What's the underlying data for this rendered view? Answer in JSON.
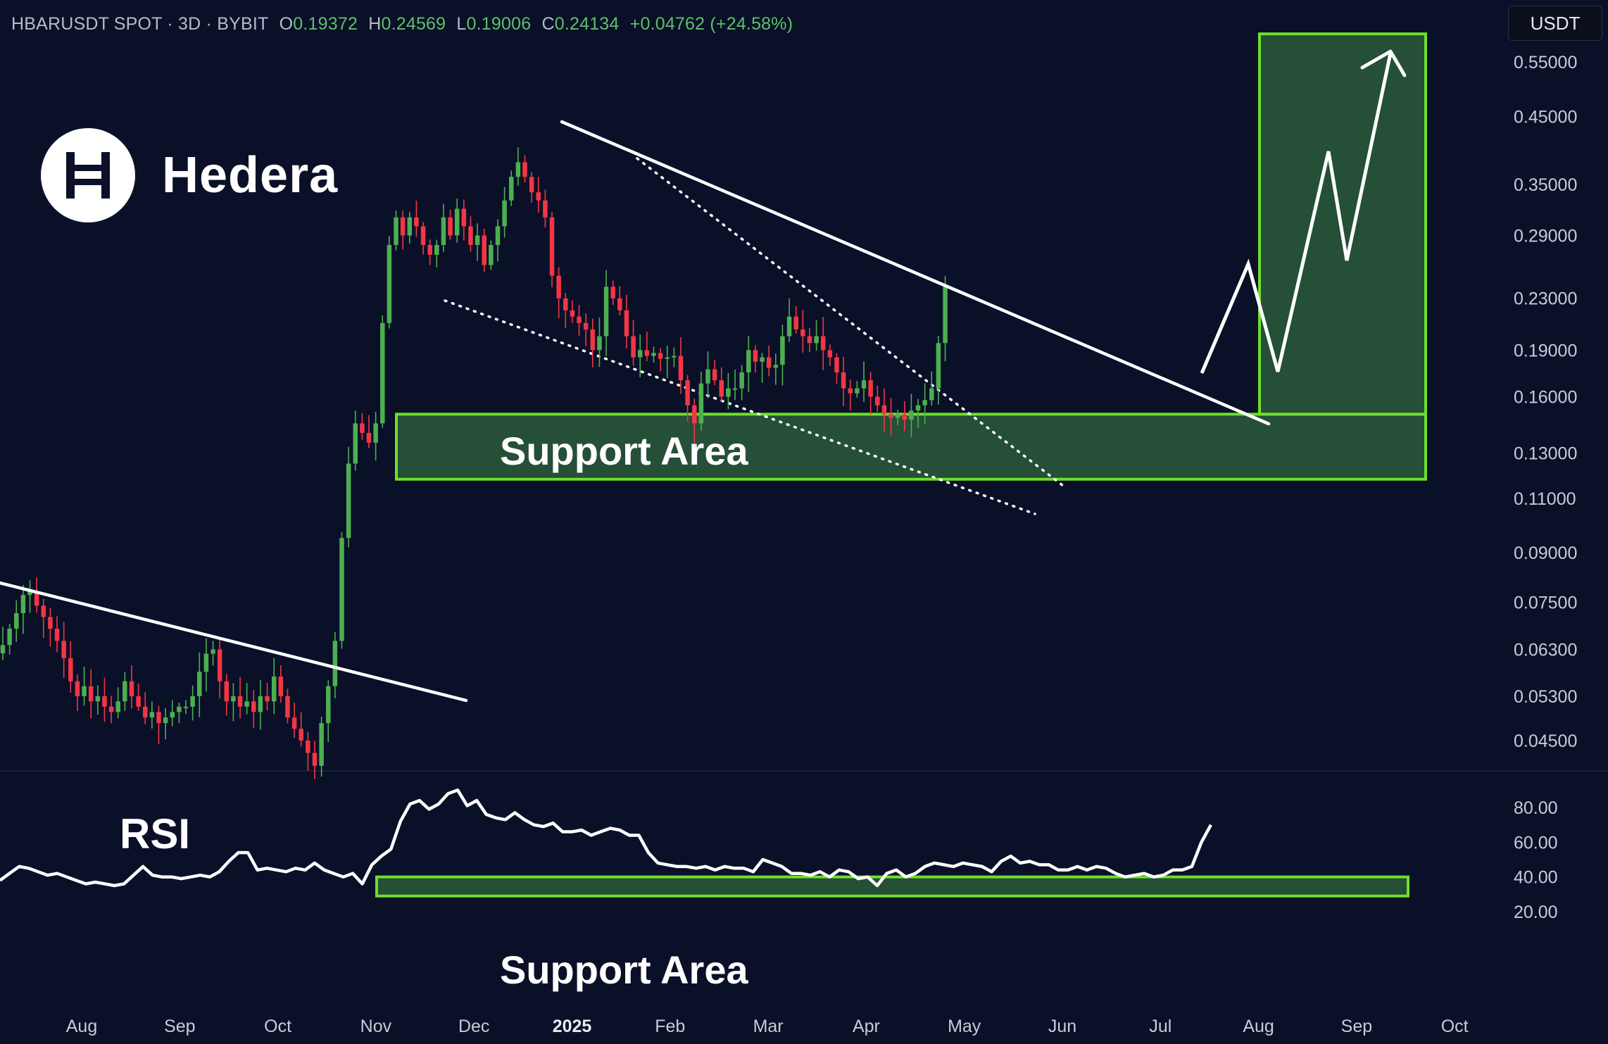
{
  "header": {
    "symbol": "HBARUSDT SPOT · 3D · BYBIT",
    "open_label": "O",
    "open": "0.19372",
    "high_label": "H",
    "high": "0.24569",
    "low_label": "L",
    "low": "0.19006",
    "close_label": "C",
    "close": "0.24134",
    "change": "+0.04762 (+24.58%)"
  },
  "currency_button": "USDT",
  "brand": {
    "name": "Hedera",
    "logo_icon": "hedera-logo-icon"
  },
  "annotations": {
    "support_price": "Support Area",
    "support_rsi": "Support Area",
    "rsi_title": "RSI"
  },
  "colors": {
    "background": "#0a1028",
    "up_candle": "#4caf50",
    "down_candle": "#f23645",
    "zone_fill": "#2a5a3a",
    "zone_border": "#6ee02a",
    "lines": "#ffffff"
  },
  "chart_data": {
    "type": "candlestick",
    "scale": "log",
    "interval": "3D",
    "price_axis": {
      "ticks": [
        "0.55000",
        "0.45000",
        "0.35000",
        "0.29000",
        "0.23000",
        "0.19000",
        "0.16000",
        "0.13000",
        "0.11000",
        "0.09000",
        "0.07500",
        "0.06300",
        "0.05300",
        "0.04500"
      ],
      "ylim": [
        0.038,
        0.62
      ]
    },
    "rsi_axis": {
      "ticks": [
        "80.00",
        "60.00",
        "40.00",
        "20.00"
      ],
      "ylim": [
        8,
        96
      ]
    },
    "time_axis": {
      "labels": [
        "Aug",
        "Sep",
        "Oct",
        "Nov",
        "Dec",
        "2025",
        "Feb",
        "Mar",
        "Apr",
        "May",
        "Jun",
        "Jul",
        "Aug",
        "Sep",
        "Oct"
      ],
      "bold": [
        "2025"
      ]
    },
    "candle_closes": [
      0.064,
      0.068,
      0.072,
      0.077,
      0.078,
      0.074,
      0.071,
      0.068,
      0.065,
      0.061,
      0.056,
      0.053,
      0.055,
      0.052,
      0.053,
      0.051,
      0.05,
      0.052,
      0.056,
      0.053,
      0.051,
      0.049,
      0.05,
      0.048,
      0.049,
      0.05,
      0.051,
      0.051,
      0.053,
      0.058,
      0.062,
      0.063,
      0.056,
      0.052,
      0.053,
      0.051,
      0.052,
      0.05,
      0.053,
      0.052,
      0.057,
      0.053,
      0.049,
      0.047,
      0.045,
      0.043,
      0.041,
      0.048,
      0.055,
      0.065,
      0.095,
      0.125,
      0.145,
      0.14,
      0.135,
      0.145,
      0.21,
      0.28,
      0.31,
      0.29,
      0.31,
      0.3,
      0.28,
      0.27,
      0.28,
      0.31,
      0.29,
      0.32,
      0.3,
      0.28,
      0.29,
      0.26,
      0.28,
      0.3,
      0.33,
      0.36,
      0.38,
      0.36,
      0.34,
      0.33,
      0.31,
      0.25,
      0.23,
      0.22,
      0.215,
      0.21,
      0.205,
      0.19,
      0.2,
      0.24,
      0.23,
      0.22,
      0.2,
      0.185,
      0.19,
      0.186,
      0.188,
      0.184,
      0.185,
      0.186,
      0.17,
      0.155,
      0.145,
      0.168,
      0.177,
      0.17,
      0.16,
      0.165,
      0.165,
      0.175,
      0.19,
      0.182,
      0.185,
      0.178,
      0.18,
      0.2,
      0.215,
      0.205,
      0.2,
      0.195,
      0.2,
      0.19,
      0.185,
      0.175,
      0.165,
      0.162,
      0.165,
      0.17,
      0.16,
      0.155,
      0.15,
      0.148,
      0.15,
      0.147,
      0.152,
      0.155,
      0.158,
      0.165,
      0.195,
      0.24
    ],
    "rsi_values": [
      38,
      42,
      46,
      45,
      43,
      41,
      42,
      40,
      38,
      36,
      37,
      36,
      35,
      36,
      41,
      46,
      41,
      40,
      40,
      39,
      40,
      41,
      40,
      43,
      49,
      54,
      54,
      44,
      45,
      44,
      43,
      45,
      44,
      48,
      44,
      42,
      40,
      42,
      36,
      47,
      52,
      56,
      72,
      82,
      84,
      79,
      82,
      88,
      90,
      81,
      84,
      76,
      74,
      73,
      77,
      73,
      70,
      69,
      71,
      66,
      66,
      67,
      64,
      66,
      68,
      67,
      64,
      64,
      54,
      48,
      47,
      46,
      46,
      45,
      46,
      44,
      46,
      45,
      45,
      43,
      50,
      48,
      46,
      42,
      42,
      41,
      43,
      40,
      44,
      43,
      39,
      40,
      35,
      42,
      44,
      40,
      42,
      46,
      48,
      47,
      46,
      48,
      47,
      46,
      43,
      49,
      52,
      48,
      49,
      47,
      47,
      44,
      44,
      46,
      44,
      46,
      45,
      42,
      40,
      41,
      42,
      40,
      41,
      44,
      44,
      46,
      60,
      70
    ],
    "overlays": {
      "support_price_zone": [
        0.118,
        0.15
      ],
      "rsi_support_zone": [
        29,
        40
      ],
      "forecast_target_zone": [
        0.15,
        0.61
      ]
    }
  }
}
